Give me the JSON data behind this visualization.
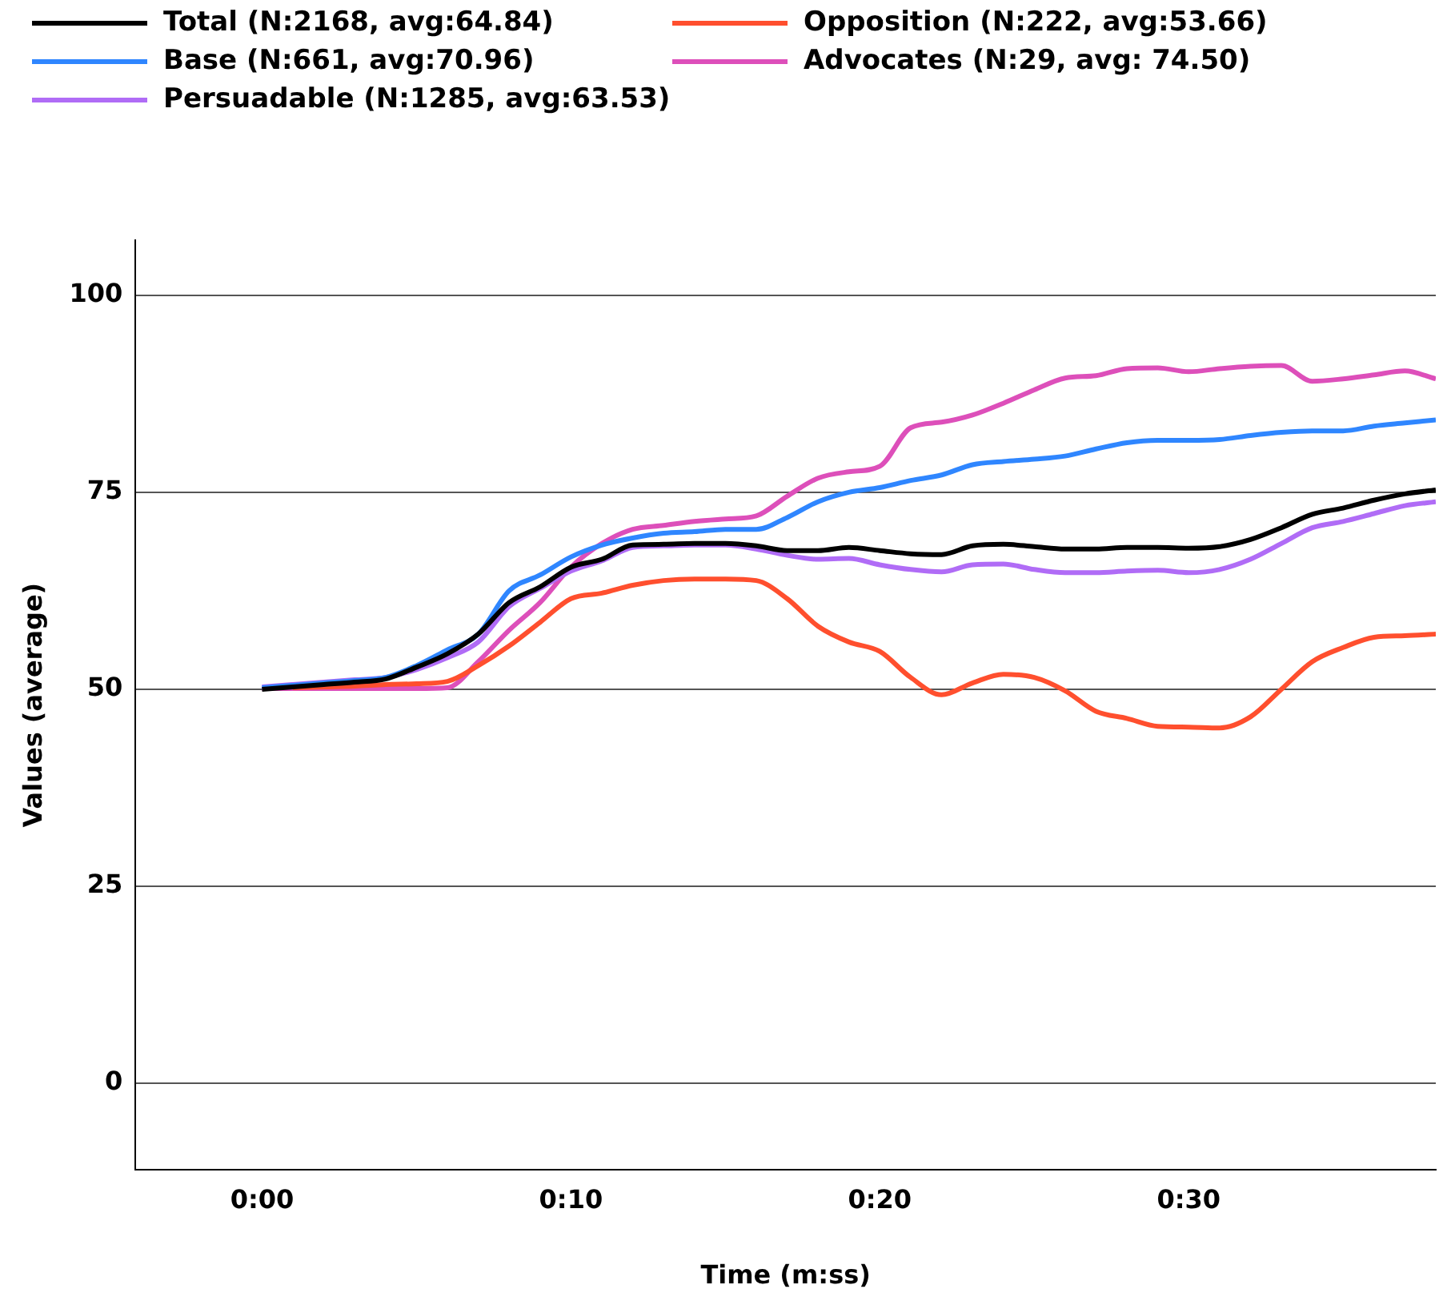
{
  "chart_data": {
    "type": "line",
    "xlabel": "Time (m:ss)",
    "ylabel": "Values (average)",
    "x": [
      0,
      1,
      2,
      3,
      4,
      5,
      6,
      7,
      8,
      9,
      10,
      11,
      12,
      13,
      14,
      15,
      16,
      17,
      18,
      19,
      20,
      21,
      22,
      23,
      24,
      25,
      26,
      27,
      28,
      29,
      30,
      31,
      32,
      33,
      34,
      35,
      36,
      37,
      38
    ],
    "xlim": [
      -4.1,
      38
    ],
    "xticks": [
      {
        "value": 0,
        "label": "0:00"
      },
      {
        "value": 10,
        "label": "0:10"
      },
      {
        "value": 20,
        "label": "0:20"
      },
      {
        "value": 30,
        "label": "0:30"
      }
    ],
    "ylim": [
      -11,
      107
    ],
    "yticks": [
      0,
      25,
      50,
      75,
      100
    ],
    "grid": "y",
    "legend": "top",
    "marker": "none",
    "line_style": "solid",
    "series": [
      {
        "name": "Total (N:2168, avg:64.84)",
        "color": "#000000",
        "values": [
          50,
          50.3,
          50.6,
          50.9,
          51.3,
          52.8,
          54.5,
          57,
          61,
          63,
          65.5,
          66.5,
          68.3,
          68.4,
          68.5,
          68.5,
          68.2,
          67.6,
          67.6,
          68,
          67.6,
          67.2,
          67.1,
          68.2,
          68.4,
          68.1,
          67.8,
          67.8,
          68,
          68,
          67.9,
          68.1,
          69,
          70.5,
          72.2,
          73,
          74,
          74.8,
          75.3
        ]
      },
      {
        "name": "Base (N:661, avg:70.96)",
        "color": "#2f86ff",
        "values": [
          50.2,
          50.5,
          50.8,
          51.1,
          51.5,
          53,
          55,
          57,
          62.5,
          64.5,
          66.8,
          68.3,
          69.2,
          69.8,
          70,
          70.3,
          70.3,
          71.8,
          73.8,
          75,
          75.6,
          76.5,
          77.2,
          78.5,
          78.9,
          79.2,
          79.6,
          80.5,
          81.3,
          81.6,
          81.6,
          81.7,
          82.2,
          82.6,
          82.8,
          82.8,
          83.4,
          83.8,
          84.2
        ]
      },
      {
        "name": "Persuadable (N:1285, avg:63.53)",
        "color": "#b06cf6",
        "values": [
          50.3,
          50.6,
          50.9,
          51.2,
          51.5,
          52.5,
          54,
          56,
          60.5,
          62.8,
          65,
          66.3,
          68,
          68.2,
          68.3,
          68.3,
          67.8,
          67,
          66.5,
          66.6,
          65.8,
          65.2,
          64.9,
          65.8,
          65.9,
          65.2,
          64.8,
          64.8,
          65,
          65.1,
          64.8,
          65.2,
          66.5,
          68.5,
          70.5,
          71.3,
          72.3,
          73.3,
          73.8
        ]
      },
      {
        "name": "Opposition (N:222, avg:53.66)",
        "color": "#ff4f2e",
        "values": [
          null,
          50.2,
          50.3,
          50.4,
          50.6,
          50.7,
          51,
          53,
          55.5,
          58.5,
          61.5,
          62.2,
          63.2,
          63.8,
          64,
          64,
          63.8,
          61.5,
          58,
          56,
          54.8,
          51.5,
          49.3,
          50.8,
          51.9,
          51.5,
          49.8,
          47.2,
          46.3,
          45.3,
          45.2,
          45.1,
          46.5,
          50,
          53.5,
          55.3,
          56.6,
          56.8,
          57
        ]
      },
      {
        "name": "Advocates (N:29, avg: 74.50)",
        "color": "#dd4fba",
        "values": [
          50.1,
          50.1,
          50.1,
          50.1,
          50.1,
          50.1,
          50.2,
          53.5,
          57.5,
          61,
          65.5,
          68.5,
          70.3,
          70.8,
          71.3,
          71.6,
          72,
          74.5,
          76.8,
          77.6,
          78.3,
          83.2,
          83.9,
          84.8,
          86.3,
          88,
          89.5,
          89.8,
          90.7,
          90.8,
          90.3,
          90.7,
          91,
          91.1,
          89.1,
          89.4,
          89.9,
          90.4,
          89.4
        ]
      }
    ]
  }
}
